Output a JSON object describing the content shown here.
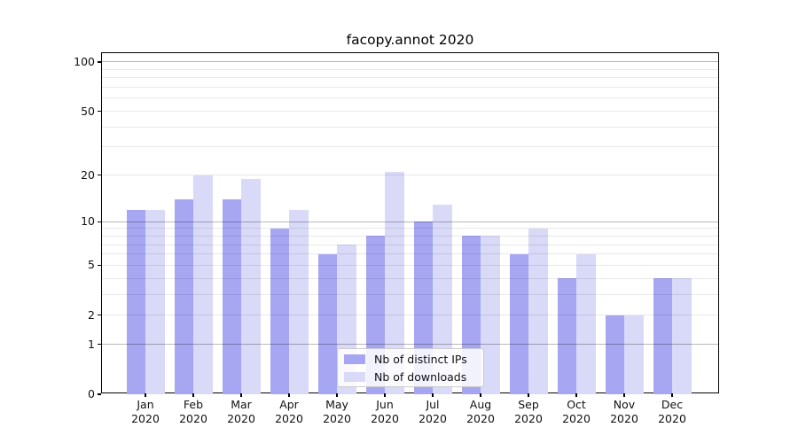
{
  "chart_data": {
    "type": "bar",
    "title": "facopy.annot 2020",
    "year": "2020",
    "categories": [
      "Jan",
      "Feb",
      "Mar",
      "Apr",
      "May",
      "Jun",
      "Jul",
      "Aug",
      "Sep",
      "Oct",
      "Nov",
      "Dec"
    ],
    "series": [
      {
        "name": "Nb of distinct IPs",
        "color": "#a6a6f2",
        "values": [
          12,
          14,
          14,
          9,
          6,
          8,
          10,
          8,
          6,
          4,
          2,
          4
        ]
      },
      {
        "name": "Nb of downloads",
        "color": "#d9d9f8",
        "values": [
          12,
          20,
          19,
          12,
          7,
          21,
          13,
          8,
          9,
          6,
          2,
          4
        ]
      }
    ],
    "yscale": "log10(value+1)",
    "ylim": [
      0,
      115
    ],
    "yticks_labeled": [
      0,
      1,
      2,
      5,
      10,
      20,
      50,
      100
    ],
    "gridlines_major": [
      1,
      10,
      100
    ],
    "gridlines_minor": [
      2,
      3,
      4,
      5,
      6,
      7,
      8,
      9,
      20,
      30,
      40,
      50,
      60,
      70,
      80,
      90
    ],
    "grid": true,
    "legend_position": "lower center",
    "background_color": "#ffffff",
    "spine_color": "#000000"
  }
}
